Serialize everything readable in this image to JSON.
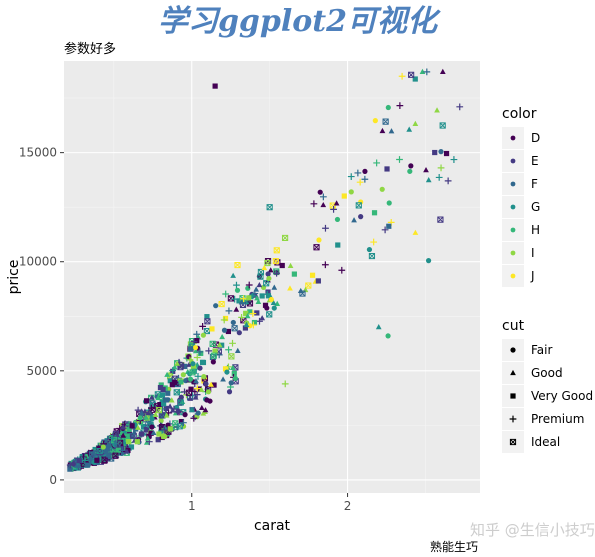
{
  "banner": {
    "title": "学习ggplot2可视化"
  },
  "watermark": "知乎 @生信小技巧",
  "credit": "熟能生巧",
  "chart_data": {
    "type": "scatter",
    "title": "参数好多",
    "xlabel": "carat",
    "ylabel": "price",
    "xlim": [
      0.18,
      2.85
    ],
    "ylim": [
      -600,
      19200
    ],
    "xticks": [
      1,
      2
    ],
    "yticks": [
      0,
      5000,
      10000,
      15000
    ],
    "grid": true,
    "legend_placement": "right",
    "color_legend": {
      "title": "color",
      "levels": [
        {
          "name": "D",
          "color": "#440154"
        },
        {
          "name": "E",
          "color": "#443a83"
        },
        {
          "name": "F",
          "color": "#31688e"
        },
        {
          "name": "G",
          "color": "#21908c"
        },
        {
          "name": "H",
          "color": "#35b779"
        },
        {
          "name": "I",
          "color": "#8fd744"
        },
        {
          "name": "J",
          "color": "#fde725"
        }
      ]
    },
    "shape_legend": {
      "title": "cut",
      "levels": [
        {
          "name": "Fair",
          "shape": "circle"
        },
        {
          "name": "Good",
          "shape": "triangle"
        },
        {
          "name": "Very Good",
          "shape": "square"
        },
        {
          "name": "Premium",
          "shape": "plus"
        },
        {
          "name": "Ideal",
          "shape": "boxed-x"
        }
      ]
    },
    "highlighted_points": [
      {
        "x": 1.15,
        "y": 18050,
        "color": "D",
        "cut": "Very Good"
      },
      {
        "x": 2.52,
        "y": 10050,
        "color": "G",
        "cut": "Fair"
      },
      {
        "x": 2.6,
        "y": 14300,
        "color": "I",
        "cut": "Premium"
      },
      {
        "x": 2.72,
        "y": 17100,
        "color": "E",
        "cut": "Premium"
      },
      {
        "x": 1.5,
        "y": 12500,
        "color": "G",
        "cut": "Ideal"
      },
      {
        "x": 2.2,
        "y": 7000,
        "color": "G",
        "cut": "Good"
      },
      {
        "x": 2.26,
        "y": 6600,
        "color": "H",
        "cut": "Fair"
      },
      {
        "x": 1.6,
        "y": 4400,
        "color": "I",
        "cut": "Premium"
      },
      {
        "x": 1.0,
        "y": 3200,
        "color": "G",
        "cut": "Good"
      },
      {
        "x": 2.35,
        "y": 18500,
        "color": "J",
        "cut": "Premium"
      }
    ],
    "point_count": 900,
    "random_seed": 7
  }
}
